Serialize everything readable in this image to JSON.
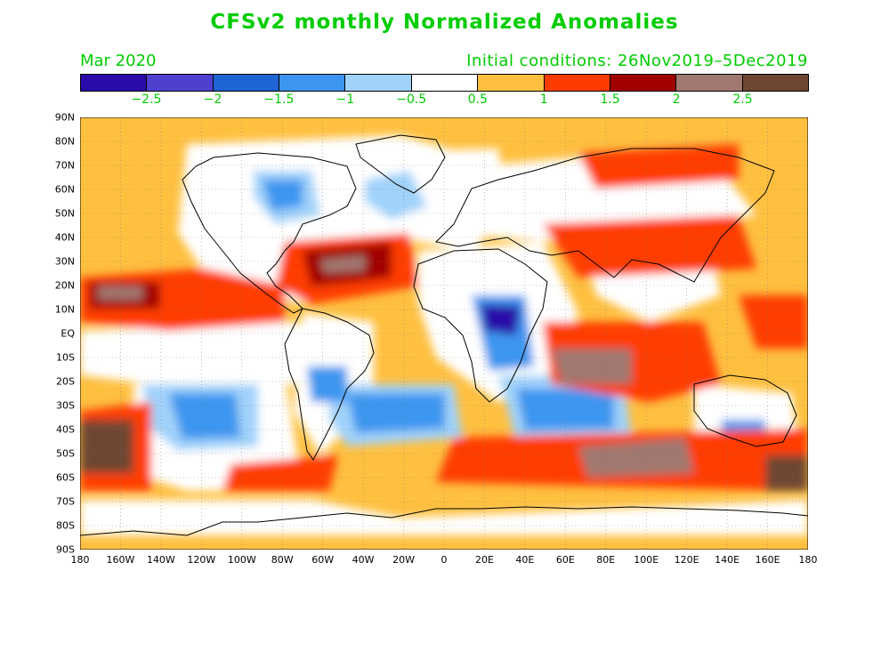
{
  "title": "CFSv2 monthly Normalized Anomalies",
  "month_label": "Mar 2020",
  "initial_conditions": "Initial conditions: 26Nov2019–5Dec2019",
  "colorbar": {
    "colors": [
      "#2a0aa8",
      "#5040d0",
      "#1e64d2",
      "#3c96f0",
      "#a0d2fa",
      "#ffffff",
      "#ffc040",
      "#ff3c00",
      "#a00000",
      "#a07870",
      "#6e4632"
    ],
    "labels": [
      "−2.5",
      "−2",
      "−1.5",
      "−1",
      "−0.5",
      "0.5",
      "1",
      "1.5",
      "2",
      "2.5"
    ]
  },
  "map": {
    "lat_labels": [
      "90N",
      "80N",
      "70N",
      "60N",
      "50N",
      "40N",
      "30N",
      "20N",
      "10N",
      "EQ",
      "10S",
      "20S",
      "30S",
      "40S",
      "50S",
      "60S",
      "70S",
      "80S",
      "90S"
    ],
    "lon_labels": [
      "180",
      "160W",
      "140W",
      "120W",
      "100W",
      "80W",
      "60W",
      "40W",
      "20W",
      "0",
      "20E",
      "40E",
      "60E",
      "80E",
      "100E",
      "120E",
      "140E",
      "160E",
      "180"
    ]
  }
}
